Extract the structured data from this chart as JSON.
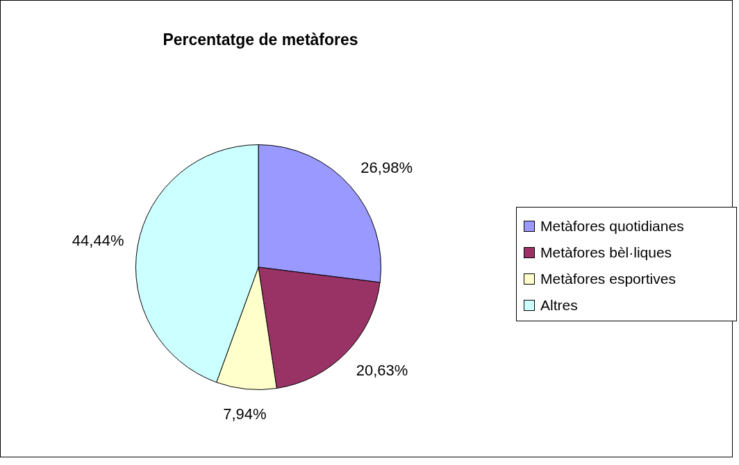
{
  "chart_data": {
    "type": "pie",
    "title": "Percentatge de metàfores",
    "categories": [
      "Metàfores quotidianes",
      "Metàfores bèl·liques",
      "Metàfores esportives",
      "Altres"
    ],
    "values": [
      26.98,
      20.63,
      7.94,
      44.44
    ],
    "value_labels": [
      "26,98%",
      "20,63%",
      "7,94%",
      "44,44%"
    ],
    "colors": [
      "#9999ff",
      "#993366",
      "#ffffcc",
      "#ccffff"
    ],
    "legend": "right"
  }
}
